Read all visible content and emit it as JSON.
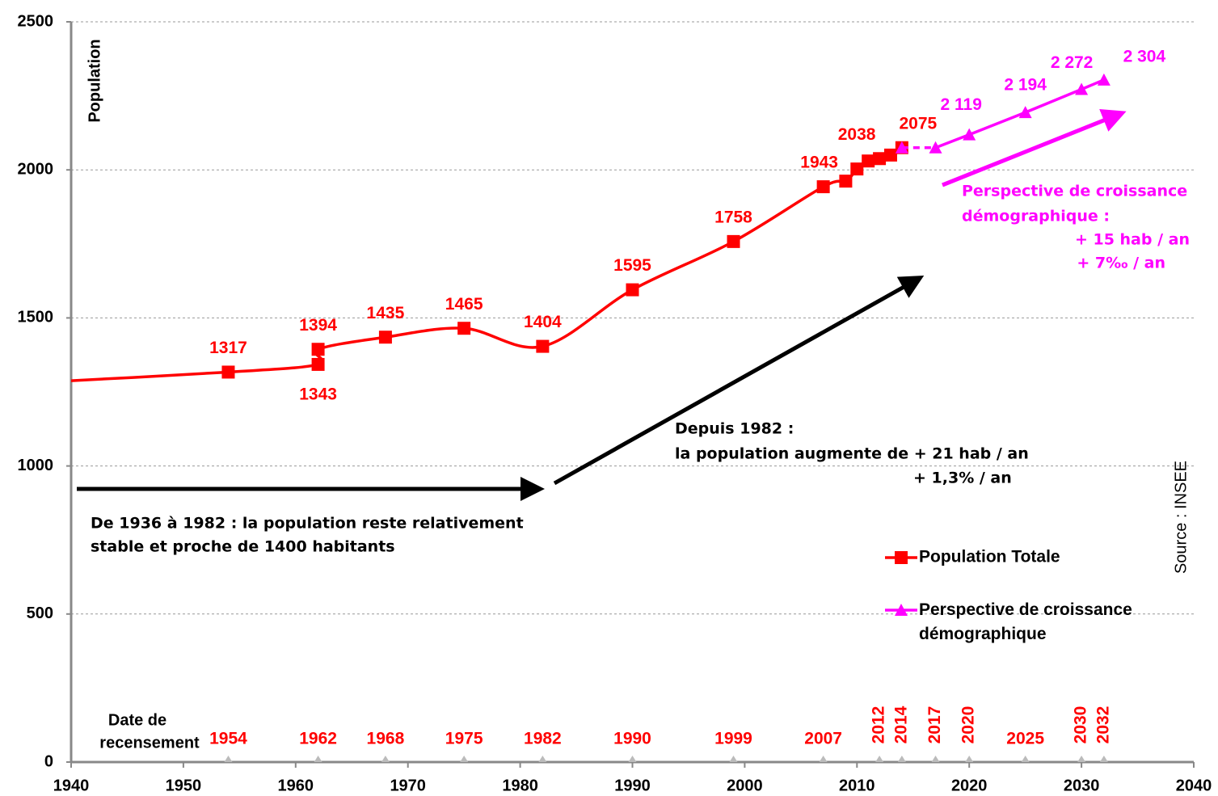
{
  "chart_data": {
    "type": "line",
    "y_label": "Population",
    "source": "Source : INSEE",
    "xlim": [
      1940,
      2040
    ],
    "xticks": [
      1940,
      1950,
      1960,
      1970,
      1980,
      1990,
      2000,
      2010,
      2020,
      2030,
      2040
    ],
    "ylim": [
      0,
      2500
    ],
    "yticks": [
      0,
      500,
      1000,
      1500,
      2000,
      2500
    ],
    "grid": true,
    "legend": "right",
    "series": [
      {
        "name": "Population Totale",
        "color": "#ff0000",
        "x": [
          1936,
          1954,
          1962,
          1962,
          1968,
          1975,
          1982,
          1990,
          1999,
          2007,
          2009,
          2010,
          2011,
          2012,
          2013,
          2014
        ],
        "values": [
          1280,
          1317,
          1343,
          1394,
          1435,
          1465,
          1404,
          1595,
          1758,
          1943,
          1962,
          2003,
          2030,
          2038,
          2050,
          2075
        ],
        "value_labels": [
          null,
          "1317",
          "1343",
          "1394",
          "1435",
          "1465",
          "1404",
          "1595",
          "1758",
          "1943",
          null,
          null,
          null,
          "2038",
          null,
          "2075"
        ]
      },
      {
        "name": "Perspective de croissance démographique",
        "color": "#ff00ff",
        "x": [
          2014,
          2017,
          2020,
          2025,
          2030,
          2032
        ],
        "values": [
          2075,
          2075,
          2119,
          2194,
          2272,
          2304
        ],
        "value_labels": [
          null,
          null,
          "2 119",
          "2 194",
          "2 272",
          "2 304"
        ]
      }
    ],
    "census_title": [
      "Date de",
      "recensement"
    ],
    "census_years": [
      1954,
      1962,
      1968,
      1975,
      1982,
      1990,
      1999,
      2007,
      2012,
      2014,
      2017,
      2020,
      2025,
      2030,
      2032
    ],
    "annotations": {
      "stable": [
        "De 1936 à 1982 : la population  reste relativement",
        "stable et  proche de 1400 habitants"
      ],
      "growth": [
        "Depuis 1982 :",
        "la population  augmente  de    + 21 hab / an",
        "+ 1,3% / an"
      ],
      "perspective": [
        "Perspective de croissance",
        "démographique  :",
        "+ 15 hab / an",
        "+ 7‰ / an"
      ]
    }
  }
}
